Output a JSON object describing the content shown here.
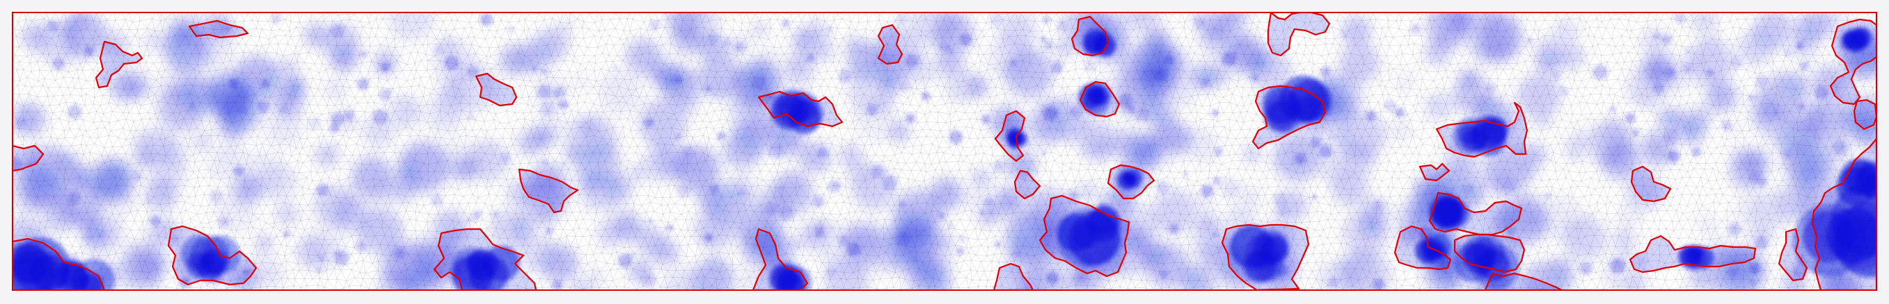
{
  "figure": {
    "background": "#f4f4f6",
    "field_low_color": "#ffffff",
    "field_high_color": "#0a12e0",
    "mesh_color": "#1a1a1a",
    "contour_color": "#e00000",
    "frame_color": "#d40000"
  }
}
